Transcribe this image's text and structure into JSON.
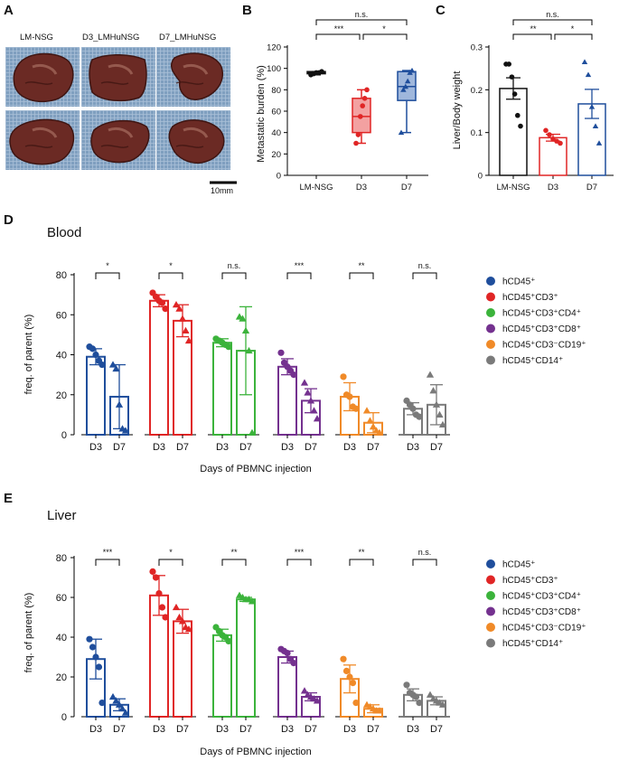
{
  "panel_labels": {
    "a": "A",
    "b": "B",
    "c": "C",
    "d": "D",
    "e": "E"
  },
  "photos": {
    "column_labels": [
      "LM-NSG",
      "D3_LMHuNSG",
      "D7_LMHuNSG"
    ],
    "scale_bar_label": "10mm",
    "colors": {
      "background": "#7f9fbf",
      "tissue": "#6b2a24",
      "tissue_dark": "#3e1512",
      "highlight": "#b07a6a"
    }
  },
  "colors": {
    "hCD45": "#1f4e9c",
    "hCD3": "#e02525",
    "hCD4": "#3bb33b",
    "hCD8": "#74318f",
    "hCD19": "#f08a28",
    "hCD14": "#7a7a7a",
    "black": "#111111"
  },
  "legend": [
    {
      "key": "hCD45",
      "label": "hCD45⁺"
    },
    {
      "key": "hCD3",
      "label": "hCD45⁺CD3⁺"
    },
    {
      "key": "hCD4",
      "label": "hCD45⁺CD3⁺CD4⁺"
    },
    {
      "key": "hCD8",
      "label": "hCD45⁺CD3⁺CD8⁺"
    },
    {
      "key": "hCD19",
      "label": "hCD45⁺CD3⁻CD19⁺"
    },
    {
      "key": "hCD14",
      "label": "hCD45⁺CD14⁺"
    }
  ],
  "chart_data": [
    {
      "id": "B",
      "type": "box",
      "ylabel": "Metastatic burden (%)",
      "ylim": [
        0,
        120
      ],
      "yticks": [
        0,
        20,
        40,
        60,
        80,
        100,
        120
      ],
      "categories": [
        "LM-NSG",
        "D3",
        "D7"
      ],
      "series": [
        {
          "name": "LM-NSG",
          "color": "#111111",
          "min": 94,
          "q1": 95,
          "median": 96,
          "q3": 97,
          "max": 97,
          "points": [
            94,
            95,
            96,
            96,
            97
          ],
          "marker": "circle"
        },
        {
          "name": "D3",
          "color": "#e02525",
          "min": 30,
          "q1": 40,
          "median": 55,
          "q3": 72,
          "max": 80,
          "points": [
            30,
            38,
            55,
            65,
            72,
            80
          ],
          "marker": "circle"
        },
        {
          "name": "D7",
          "color": "#1f4e9c",
          "min": 40,
          "q1": 70,
          "median": 83,
          "q3": 97,
          "max": 98,
          "points": [
            40,
            80,
            83,
            88,
            96,
            98
          ],
          "marker": "triangle"
        }
      ],
      "significance": [
        {
          "from": 0,
          "to": 2,
          "label": "n.s.",
          "level": 2
        },
        {
          "from": 0,
          "to": 1,
          "label": "***",
          "level": 1
        },
        {
          "from": 1,
          "to": 2,
          "label": "*",
          "level": 1
        }
      ]
    },
    {
      "id": "C",
      "type": "bar",
      "ylabel": "Liver/Body weight",
      "ylim": [
        0,
        0.3
      ],
      "yticks": [
        0,
        0.1,
        0.2,
        0.3
      ],
      "categories": [
        "LM-NSG",
        "D3",
        "D7"
      ],
      "series": [
        {
          "name": "LM-NSG",
          "color": "#111111",
          "mean": 0.203,
          "err": 0.025,
          "points": [
            0.26,
            0.26,
            0.23,
            0.19,
            0.14,
            0.115
          ],
          "marker": "circle"
        },
        {
          "name": "D3",
          "color": "#e02525",
          "mean": 0.088,
          "err": 0.008,
          "points": [
            0.105,
            0.095,
            0.085,
            0.08,
            0.075
          ],
          "marker": "circle"
        },
        {
          "name": "D7",
          "color": "#1f4e9c",
          "mean": 0.167,
          "err": 0.034,
          "points": [
            0.265,
            0.235,
            0.16,
            0.115,
            0.075
          ],
          "marker": "triangle"
        }
      ],
      "significance": [
        {
          "from": 0,
          "to": 2,
          "label": "n.s.",
          "level": 2
        },
        {
          "from": 0,
          "to": 1,
          "label": "**",
          "level": 1
        },
        {
          "from": 1,
          "to": 2,
          "label": "*",
          "level": 1
        }
      ]
    },
    {
      "id": "D",
      "type": "bar",
      "title": "Blood",
      "ylabel": "freq. of parent (%)",
      "xlabel": "Days of PBMNC injection",
      "ylim": [
        0,
        80
      ],
      "yticks": [
        0,
        20,
        40,
        60,
        80
      ],
      "groups": [
        {
          "key": "hCD45",
          "sig": "*",
          "bars": [
            {
              "label": "D3",
              "mean": 39,
              "err": 4,
              "points": [
                44,
                43,
                40,
                37,
                35
              ],
              "marker": "circle"
            },
            {
              "label": "D7",
              "mean": 19,
              "err": 16,
              "points": [
                35,
                33,
                15,
                3,
                2
              ],
              "marker": "triangle"
            }
          ]
        },
        {
          "key": "hCD3",
          "sig": "*",
          "bars": [
            {
              "label": "D3",
              "mean": 67,
              "err": 3,
              "points": [
                71,
                69,
                67,
                66,
                63
              ],
              "marker": "circle"
            },
            {
              "label": "D7",
              "mean": 57,
              "err": 8,
              "points": [
                65,
                63,
                58,
                52,
                47
              ],
              "marker": "triangle"
            }
          ]
        },
        {
          "key": "hCD4",
          "sig": "n.s.",
          "bars": [
            {
              "label": "D3",
              "mean": 46,
              "err": 2,
              "points": [
                48,
                47,
                46,
                45,
                44
              ],
              "marker": "circle"
            },
            {
              "label": "D7",
              "mean": 42,
              "err": 22,
              "points": [
                59,
                58,
                52,
                42,
                1
              ],
              "marker": "triangle"
            }
          ]
        },
        {
          "key": "hCD8",
          "sig": "***",
          "bars": [
            {
              "label": "D3",
              "mean": 34,
              "err": 4,
              "points": [
                41,
                36,
                34,
                32,
                30
              ],
              "marker": "circle"
            },
            {
              "label": "D7",
              "mean": 17,
              "err": 6,
              "points": [
                26,
                21,
                17,
                12,
                8
              ],
              "marker": "triangle"
            }
          ]
        },
        {
          "key": "hCD19",
          "sig": "**",
          "bars": [
            {
              "label": "D3",
              "mean": 19,
              "err": 7,
              "points": [
                29,
                20,
                19,
                14,
                13
              ],
              "marker": "circle"
            },
            {
              "label": "D7",
              "mean": 6,
              "err": 5,
              "points": [
                12,
                7,
                4,
                2,
                1
              ],
              "marker": "triangle"
            }
          ]
        },
        {
          "key": "hCD14",
          "sig": "n.s.",
          "bars": [
            {
              "label": "D3",
              "mean": 13,
              "err": 3,
              "points": [
                17,
                15,
                13,
                10,
                9
              ],
              "marker": "circle"
            },
            {
              "label": "D7",
              "mean": 15,
              "err": 10,
              "points": [
                30,
                22,
                15,
                10,
                5
              ],
              "marker": "triangle"
            }
          ]
        }
      ]
    },
    {
      "id": "E",
      "type": "bar",
      "title": "Liver",
      "ylabel": "freq. of parent (%)",
      "xlabel": "Days of PBMNC injection",
      "ylim": [
        0,
        80
      ],
      "yticks": [
        0,
        20,
        40,
        60,
        80
      ],
      "groups": [
        {
          "key": "hCD45",
          "sig": "***",
          "bars": [
            {
              "label": "D3",
              "mean": 29,
              "err": 10,
              "points": [
                39,
                35,
                30,
                25,
                7
              ],
              "marker": "circle"
            },
            {
              "label": "D7",
              "mean": 6,
              "err": 3,
              "points": [
                10,
                8,
                6,
                4,
                2
              ],
              "marker": "triangle"
            }
          ]
        },
        {
          "key": "hCD3",
          "sig": "*",
          "bars": [
            {
              "label": "D3",
              "mean": 61,
              "err": 10,
              "points": [
                73,
                70,
                62,
                55,
                50
              ],
              "marker": "circle"
            },
            {
              "label": "D7",
              "mean": 48,
              "err": 6,
              "points": [
                55,
                50,
                48,
                45,
                44
              ],
              "marker": "triangle"
            }
          ]
        },
        {
          "key": "hCD4",
          "sig": "**",
          "bars": [
            {
              "label": "D3",
              "mean": 41,
              "err": 3,
              "points": [
                45,
                43,
                41,
                40,
                38
              ],
              "marker": "circle"
            },
            {
              "label": "D7",
              "mean": 59,
              "err": 1,
              "points": [
                61,
                60,
                59,
                59,
                58
              ],
              "marker": "triangle"
            }
          ]
        },
        {
          "key": "hCD8",
          "sig": "***",
          "bars": [
            {
              "label": "D3",
              "mean": 30,
              "err": 3,
              "points": [
                34,
                33,
                32,
                29,
                27
              ],
              "marker": "circle"
            },
            {
              "label": "D7",
              "mean": 10,
              "err": 2,
              "points": [
                13,
                11,
                10,
                9,
                8
              ],
              "marker": "triangle"
            }
          ]
        },
        {
          "key": "hCD19",
          "sig": "**",
          "bars": [
            {
              "label": "D3",
              "mean": 19,
              "err": 7,
              "points": [
                29,
                23,
                20,
                17,
                7
              ],
              "marker": "circle"
            },
            {
              "label": "D7",
              "mean": 4,
              "err": 2,
              "points": [
                6,
                5,
                4,
                3,
                3
              ],
              "marker": "triangle"
            }
          ]
        },
        {
          "key": "hCD14",
          "sig": "n.s.",
          "bars": [
            {
              "label": "D3",
              "mean": 11,
              "err": 3,
              "points": [
                16,
                12,
                11,
                10,
                7
              ],
              "marker": "circle"
            },
            {
              "label": "D7",
              "mean": 8,
              "err": 2,
              "points": [
                11,
                9,
                8,
                7,
                6
              ],
              "marker": "triangle"
            }
          ]
        }
      ]
    }
  ]
}
